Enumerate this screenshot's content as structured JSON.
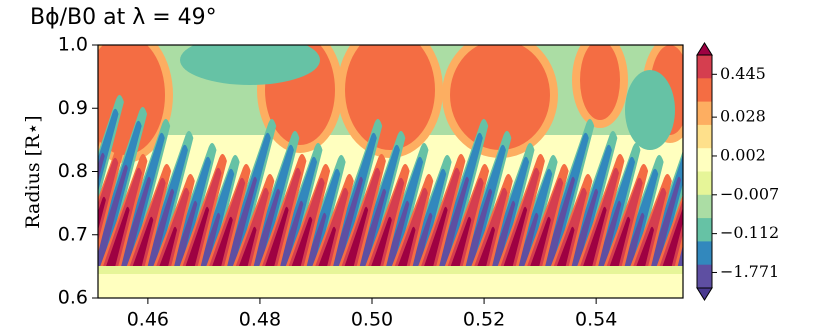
{
  "chart_data": {
    "type": "contourf",
    "title": "Bϕ/B0 at λ = 49°",
    "ylabel": "Radius [R⋆]",
    "xlim": [
      0.4511,
      0.5555
    ],
    "xticks": [
      {
        "value": 0.46,
        "label": "0.46"
      },
      {
        "value": 0.48,
        "label": "0.48"
      },
      {
        "value": 0.5,
        "label": "0.50"
      },
      {
        "value": 0.52,
        "label": "0.52"
      },
      {
        "value": 0.54,
        "label": "0.54"
      }
    ],
    "ylim": [
      0.6,
      1.0
    ],
    "yticks": [
      {
        "value": 0.6,
        "label": "0.6"
      },
      {
        "value": 0.7,
        "label": "0.7"
      },
      {
        "value": 0.8,
        "label": "0.8"
      },
      {
        "value": 0.9,
        "label": "0.9"
      },
      {
        "value": 1.0,
        "label": "1.0"
      }
    ],
    "colorbar": {
      "ticks": [
        {
          "value": 0.445,
          "label": "0.445"
        },
        {
          "value": 0.028,
          "label": "0.028"
        },
        {
          "value": 0.002,
          "label": "0.002"
        },
        {
          "value": -0.007,
          "label": "−0.007"
        },
        {
          "value": -0.112,
          "label": "−0.112"
        },
        {
          "value": -1.771,
          "label": "−1.771"
        }
      ],
      "colors": [
        "#9e0142",
        "#d53e4f",
        "#f46d43",
        "#fdae61",
        "#fee08b",
        "#ffffbf",
        "#e6f598",
        "#abdda4",
        "#66c2a5",
        "#3288bd",
        "#5e4fa2",
        "#4a3a90"
      ]
    }
  }
}
